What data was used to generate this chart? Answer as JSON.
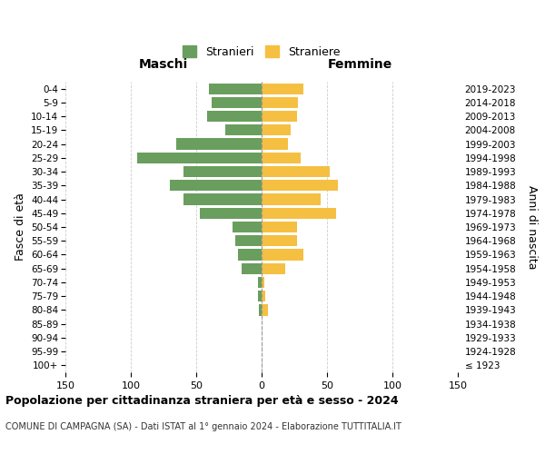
{
  "age_groups": [
    "100+",
    "95-99",
    "90-94",
    "85-89",
    "80-84",
    "75-79",
    "70-74",
    "65-69",
    "60-64",
    "55-59",
    "50-54",
    "45-49",
    "40-44",
    "35-39",
    "30-34",
    "25-29",
    "20-24",
    "15-19",
    "10-14",
    "5-9",
    "0-4"
  ],
  "birth_years": [
    "≤ 1923",
    "1924-1928",
    "1929-1933",
    "1934-1938",
    "1939-1943",
    "1944-1948",
    "1949-1953",
    "1954-1958",
    "1959-1963",
    "1964-1968",
    "1969-1973",
    "1974-1978",
    "1979-1983",
    "1984-1988",
    "1989-1993",
    "1994-1998",
    "1999-2003",
    "2004-2008",
    "2009-2013",
    "2014-2018",
    "2019-2023"
  ],
  "males": [
    0,
    0,
    0,
    0,
    2,
    3,
    3,
    15,
    18,
    20,
    22,
    47,
    60,
    70,
    60,
    95,
    65,
    28,
    42,
    38,
    40
  ],
  "females": [
    0,
    0,
    0,
    0,
    5,
    3,
    2,
    18,
    32,
    27,
    27,
    57,
    45,
    58,
    52,
    30,
    20,
    22,
    27,
    28,
    32
  ],
  "male_color": "#6a9e5e",
  "female_color": "#f5bf42",
  "background_color": "#ffffff",
  "grid_color": "#cccccc",
  "xlim": 150,
  "title": "Popolazione per cittadinanza straniera per età e sesso - 2024",
  "subtitle": "COMUNE DI CAMPAGNA (SA) - Dati ISTAT al 1° gennaio 2024 - Elaborazione TUTTITALIA.IT",
  "ylabel_left": "Fasce di età",
  "ylabel_right": "Anni di nascita",
  "header_left": "Maschi",
  "header_right": "Femmine",
  "legend_male": "Stranieri",
  "legend_female": "Straniere",
  "bar_height": 0.8
}
